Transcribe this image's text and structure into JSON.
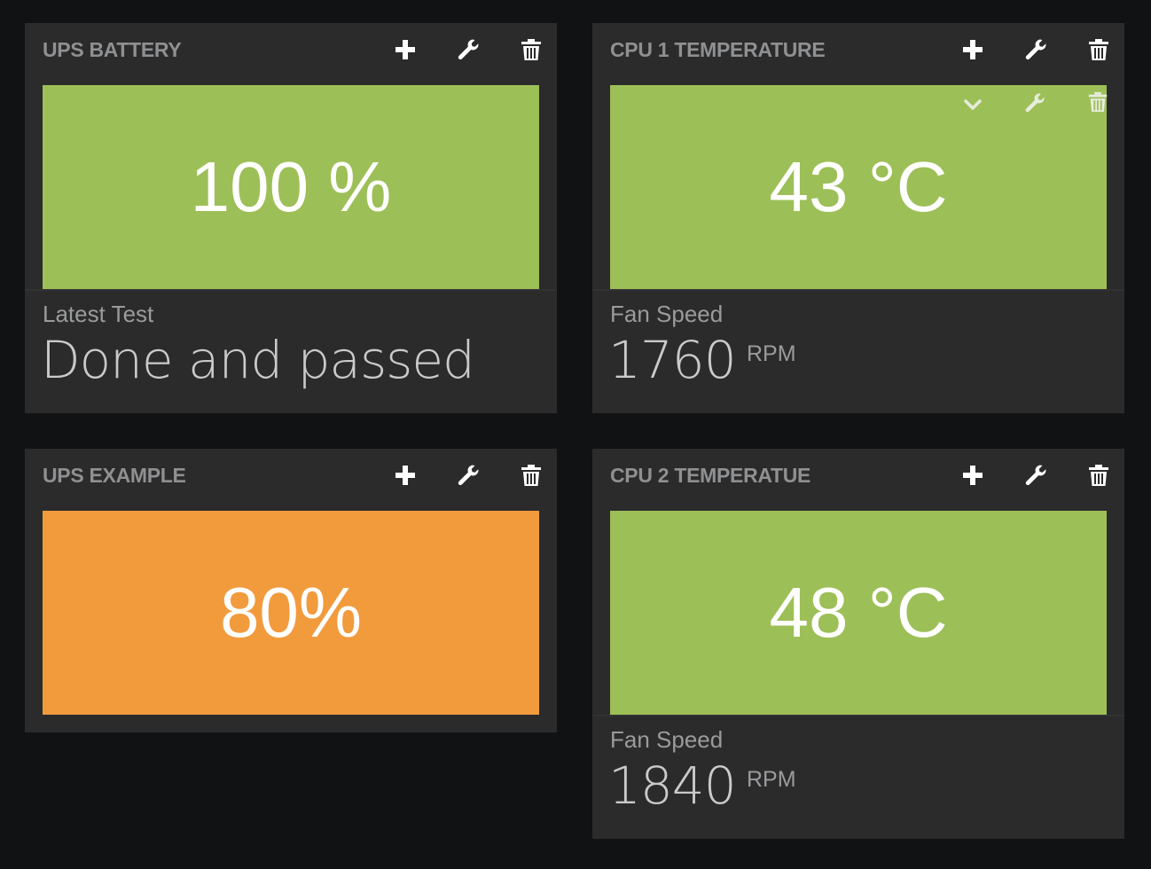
{
  "colors": {
    "background": "#111214",
    "panel": "#2b2b2c",
    "ok_green": "#9dbf57",
    "warn_orange": "#f19b3d"
  },
  "widgets": [
    {
      "title": "UPS BATTERY",
      "value": "100 %",
      "status_color": "#9dbf57",
      "sub_label": "Latest Test",
      "sub_value": "Done and passed",
      "sub_unit": ""
    },
    {
      "title": "CPU 1 TEMPERATURE",
      "value": "43 °C",
      "status_color": "#9dbf57",
      "sub_label": "Fan Speed",
      "sub_value": "1760",
      "sub_unit": "RPM",
      "tile_icons": [
        "chevron-down-icon",
        "wrench-icon",
        "trash-icon"
      ]
    },
    {
      "title": "UPS EXAMPLE",
      "value": "80%",
      "status_color": "#f19b3d"
    },
    {
      "title": "CPU 2 TEMPERATUE",
      "value": "48 °C",
      "status_color": "#9dbf57",
      "sub_label": "Fan Speed",
      "sub_value": "1840",
      "sub_unit": "RPM"
    }
  ],
  "header_icons": [
    "plus-icon",
    "wrench-icon",
    "trash-icon"
  ]
}
